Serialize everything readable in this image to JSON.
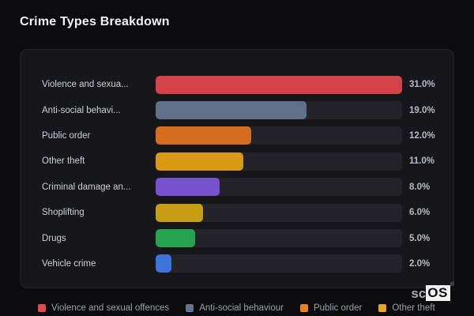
{
  "title": "Crime Types Breakdown",
  "chart_data": {
    "type": "bar",
    "orientation": "horizontal",
    "title": "Crime Types Breakdown",
    "value_unit": "%",
    "scale_max": 31,
    "track_color": "#232329",
    "rows": [
      {
        "label": "Violence and sexua...",
        "value": 31.0,
        "display": "31.0%",
        "color": "#d24248"
      },
      {
        "label": "Anti-social behavi...",
        "value": 19.0,
        "display": "19.0%",
        "color": "#61708a"
      },
      {
        "label": "Public order",
        "value": 12.0,
        "display": "12.0%",
        "color": "#d56d1e"
      },
      {
        "label": "Other theft",
        "value": 11.0,
        "display": "11.0%",
        "color": "#d89a16"
      },
      {
        "label": "Criminal damage an...",
        "value": 8.0,
        "display": "8.0%",
        "color": "#7752d0"
      },
      {
        "label": "Shoplifting",
        "value": 6.0,
        "display": "6.0%",
        "color": "#c79e13"
      },
      {
        "label": "Drugs",
        "value": 5.0,
        "display": "5.0%",
        "color": "#26a351"
      },
      {
        "label": "Vehicle crime",
        "value": 2.0,
        "display": "2.0%",
        "color": "#3b73da"
      }
    ],
    "legend_position": "bottom"
  },
  "legend": {
    "items": [
      {
        "label": "Violence and sexual offences",
        "color": "#e0494f"
      },
      {
        "label": "Anti-social behaviour",
        "color": "#64748b"
      },
      {
        "label": "Public order",
        "color": "#e8821f"
      },
      {
        "label": "Other theft",
        "color": "#e9a816"
      }
    ]
  },
  "logo": {
    "prefix": "sc",
    "suffix": "OS",
    "registered_mark": "®"
  },
  "colors": {
    "page_background": "#0c0c0f",
    "panel_background": "#17171b",
    "title_text": "#f2f3f5",
    "label_text": "#ccd0d6",
    "value_text": "#b7bbc3",
    "legend_text": "#99a0ac"
  }
}
